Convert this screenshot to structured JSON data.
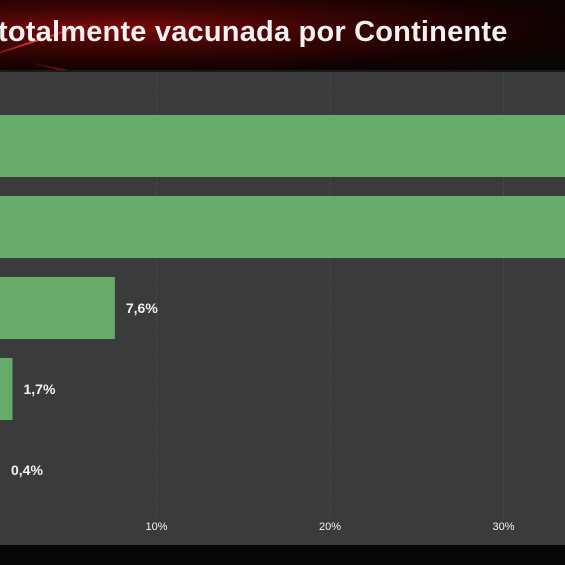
{
  "title": "totalmente vacunada por Continente",
  "colors": {
    "bar": "#66ab6a",
    "plot_bg": "#3b3b3b",
    "grid": "#555555",
    "text": "#f2f2f2"
  },
  "chart_data": {
    "type": "bar",
    "orientation": "horizontal",
    "title": "totalmente vacunada por Continente",
    "values": [
      34,
      34,
      7.6,
      1.7,
      0.4
    ],
    "data_labels": [
      "",
      "",
      "7,6%",
      "1,7%",
      "0,4%"
    ],
    "x_ticks": [
      10,
      20,
      30
    ],
    "x_tick_labels": [
      "10%",
      "20%",
      "30%"
    ],
    "xlim": [
      0,
      33.5
    ],
    "grid": true
  }
}
